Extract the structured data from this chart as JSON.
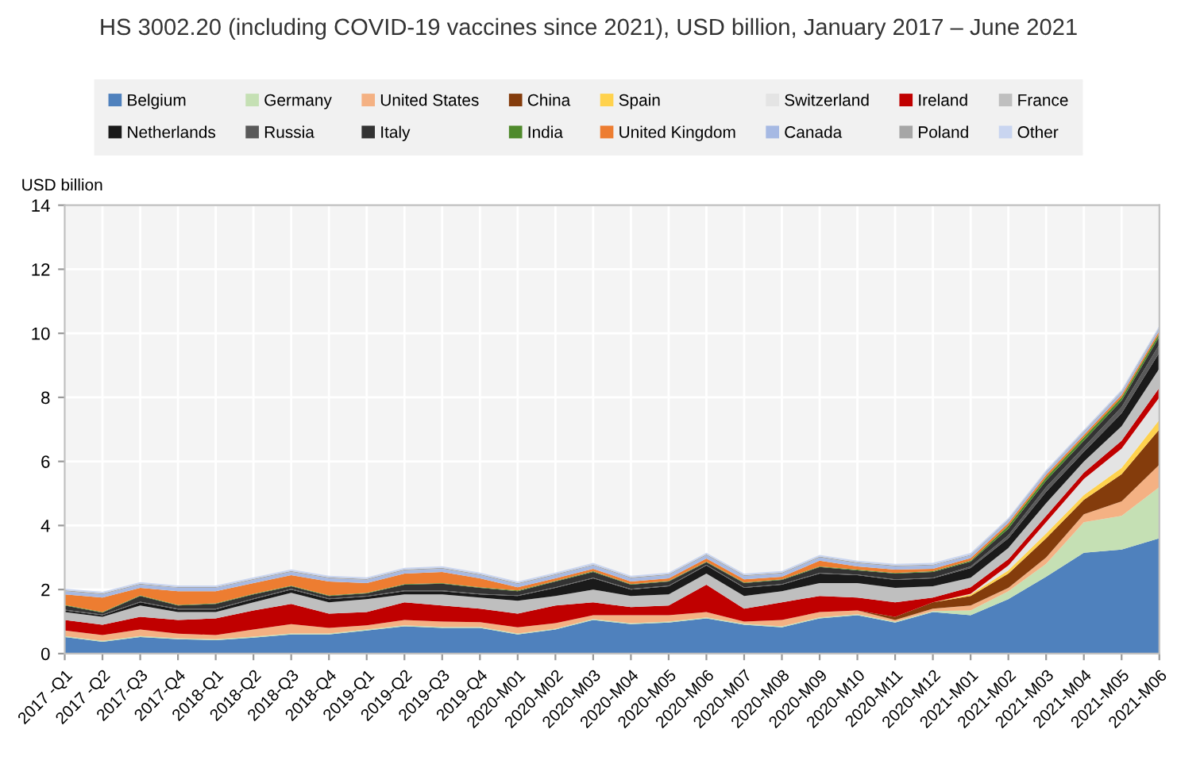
{
  "chart_data": {
    "type": "area",
    "stacked": true,
    "title": "HS 3002.20 (including COVID-19 vaccines since 2021), USD billion, January 2017 – June 2021",
    "ylabel": "USD billion",
    "categories": [
      "2017 -Q1",
      "2017 -Q2",
      "2017-Q3",
      "2017-Q4",
      "2018-Q1",
      "2018-Q2",
      "2018-Q3",
      "2018-Q4",
      "2019-Q1",
      "2019-Q2",
      "2019-Q3",
      "2019-Q4",
      "2020-M01",
      "2020-M02",
      "2020-M03",
      "2020-M04",
      "2020-M05",
      "2020-M06",
      "2020-M07",
      "2020-M08",
      "2020-M09",
      "2020-M10",
      "2020-M11",
      "2020-M12",
      "2021-M01",
      "2021-M02",
      "2021-M03",
      "2021-M04",
      "2021-M05",
      "2021-M06"
    ],
    "ylim": [
      0,
      14
    ],
    "yticks": [
      0,
      2,
      4,
      6,
      8,
      10,
      12,
      14
    ],
    "grid": true,
    "legend": "top",
    "series": [
      {
        "name": "Belgium",
        "color": "#4f81bd",
        "values": [
          0.52,
          0.37,
          0.52,
          0.45,
          0.42,
          0.5,
          0.6,
          0.6,
          0.72,
          0.85,
          0.8,
          0.8,
          0.6,
          0.75,
          1.05,
          0.92,
          0.97,
          1.1,
          0.9,
          0.82,
          1.1,
          1.2,
          0.97,
          1.3,
          1.2,
          1.7,
          2.4,
          3.15,
          3.25,
          3.6
        ]
      },
      {
        "name": "Germany",
        "color": "#c5e0b4",
        "values": [
          0.03,
          0.03,
          0.03,
          0.03,
          0.03,
          0.03,
          0.03,
          0.03,
          0.03,
          0.03,
          0.03,
          0.03,
          0.03,
          0.03,
          0.03,
          0.03,
          0.03,
          0.03,
          0.03,
          0.03,
          0.03,
          0.03,
          0.03,
          0.03,
          0.15,
          0.25,
          0.4,
          0.95,
          1.05,
          1.6
        ]
      },
      {
        "name": "United States",
        "color": "#f4b183",
        "values": [
          0.17,
          0.18,
          0.2,
          0.14,
          0.13,
          0.22,
          0.29,
          0.17,
          0.13,
          0.17,
          0.17,
          0.15,
          0.19,
          0.17,
          0.12,
          0.25,
          0.2,
          0.17,
          0.07,
          0.2,
          0.17,
          0.12,
          0.05,
          0.07,
          0.15,
          0.1,
          0.2,
          0.25,
          0.45,
          0.7
        ]
      },
      {
        "name": "China",
        "color": "#843c0c",
        "values": [
          0,
          0,
          0,
          0,
          0,
          0,
          0,
          0,
          0,
          0,
          0,
          0,
          0,
          0,
          0,
          0,
          0,
          0,
          0,
          0,
          0,
          0,
          0.1,
          0.2,
          0.3,
          0.45,
          0.6,
          0.45,
          0.85,
          1.1
        ]
      },
      {
        "name": "Spain",
        "color": "#ffd24d",
        "values": [
          0,
          0,
          0,
          0,
          0,
          0,
          0,
          0,
          0,
          0,
          0,
          0,
          0,
          0,
          0,
          0,
          0,
          0,
          0,
          0,
          0,
          0,
          0,
          0,
          0.05,
          0.1,
          0.15,
          0.15,
          0.2,
          0.3
        ]
      },
      {
        "name": "Switzerland",
        "color": "#e4e4e4",
        "values": [
          0,
          0,
          0,
          0,
          0,
          0,
          0,
          0,
          0,
          0,
          0,
          0,
          0,
          0,
          0,
          0,
          0,
          0,
          0,
          0,
          0,
          0,
          0,
          0,
          0.02,
          0.15,
          0.35,
          0.5,
          0.6,
          0.7
        ]
      },
      {
        "name": "Ireland",
        "color": "#c00000",
        "values": [
          0.33,
          0.32,
          0.4,
          0.43,
          0.52,
          0.6,
          0.63,
          0.45,
          0.42,
          0.55,
          0.5,
          0.42,
          0.43,
          0.55,
          0.4,
          0.25,
          0.3,
          0.85,
          0.4,
          0.55,
          0.5,
          0.4,
          0.45,
          0.15,
          0.2,
          0.2,
          0.2,
          0.2,
          0.25,
          0.3
        ]
      },
      {
        "name": "France",
        "color": "#bfbfbf",
        "values": [
          0.25,
          0.25,
          0.35,
          0.25,
          0.2,
          0.25,
          0.35,
          0.35,
          0.4,
          0.25,
          0.35,
          0.35,
          0.4,
          0.3,
          0.4,
          0.35,
          0.35,
          0.35,
          0.4,
          0.35,
          0.4,
          0.45,
          0.45,
          0.35,
          0.3,
          0.35,
          0.4,
          0.35,
          0.45,
          0.6
        ]
      },
      {
        "name": "Netherlands",
        "color": "#1a1a1a",
        "values": [
          0.05,
          0.05,
          0.1,
          0.08,
          0.08,
          0.1,
          0.1,
          0.1,
          0.08,
          0.1,
          0.1,
          0.1,
          0.15,
          0.25,
          0.35,
          0.2,
          0.25,
          0.25,
          0.25,
          0.2,
          0.3,
          0.25,
          0.25,
          0.25,
          0.3,
          0.3,
          0.35,
          0.3,
          0.4,
          0.5
        ]
      },
      {
        "name": "Russia",
        "color": "#595959",
        "values": [
          0.02,
          0.02,
          0.02,
          0.02,
          0.02,
          0.02,
          0.02,
          0.02,
          0.02,
          0.02,
          0.02,
          0.02,
          0.02,
          0.02,
          0.02,
          0.02,
          0.02,
          0.02,
          0.02,
          0.02,
          0.02,
          0.02,
          0.02,
          0.02,
          0.05,
          0.1,
          0.15,
          0.15,
          0.2,
          0.25
        ]
      },
      {
        "name": "Italy",
        "color": "#333333",
        "values": [
          0.13,
          0.06,
          0.18,
          0.1,
          0.15,
          0.13,
          0.08,
          0.08,
          0.08,
          0.18,
          0.21,
          0.18,
          0.13,
          0.18,
          0.18,
          0.13,
          0.13,
          0.08,
          0.13,
          0.13,
          0.18,
          0.13,
          0.18,
          0.18,
          0.15,
          0.2,
          0.2,
          0.2,
          0.2,
          0.25
        ]
      },
      {
        "name": "India",
        "color": "#4f8a2c",
        "values": [
          0.02,
          0.02,
          0.02,
          0.02,
          0.02,
          0.02,
          0.02,
          0.02,
          0.02,
          0.02,
          0.02,
          0.02,
          0.02,
          0.02,
          0.02,
          0.02,
          0.02,
          0.02,
          0.02,
          0.02,
          0.02,
          0.02,
          0.02,
          0.02,
          0.03,
          0.1,
          0.1,
          0.1,
          0.1,
          0.1
        ]
      },
      {
        "name": "United Kingdom",
        "color": "#ed7d31",
        "values": [
          0.33,
          0.45,
          0.23,
          0.43,
          0.38,
          0.33,
          0.33,
          0.43,
          0.3,
          0.33,
          0.35,
          0.28,
          0.1,
          0.08,
          0.08,
          0.08,
          0.08,
          0.1,
          0.1,
          0.08,
          0.18,
          0.1,
          0.1,
          0.08,
          0.08,
          0.08,
          0.08,
          0.08,
          0.08,
          0.08
        ]
      },
      {
        "name": "Canada",
        "color": "#a6b9e3",
        "values": [
          0.1,
          0.1,
          0.1,
          0.1,
          0.1,
          0.1,
          0.1,
          0.1,
          0.1,
          0.1,
          0.1,
          0.1,
          0.1,
          0.1,
          0.1,
          0.1,
          0.1,
          0.1,
          0.1,
          0.1,
          0.1,
          0.1,
          0.1,
          0.1,
          0.08,
          0.08,
          0.08,
          0.08,
          0.08,
          0.08
        ]
      },
      {
        "name": "Poland",
        "color": "#a6a6a6",
        "values": [
          0.03,
          0.03,
          0.03,
          0.03,
          0.03,
          0.03,
          0.03,
          0.03,
          0.03,
          0.03,
          0.03,
          0.03,
          0.03,
          0.03,
          0.03,
          0.03,
          0.03,
          0.03,
          0.03,
          0.03,
          0.03,
          0.03,
          0.03,
          0.03,
          0.03,
          0.03,
          0.03,
          0.03,
          0.03,
          0.03
        ]
      },
      {
        "name": "Other",
        "color": "#c9d5f0",
        "values": [
          0.05,
          0.05,
          0.05,
          0.05,
          0.05,
          0.05,
          0.05,
          0.05,
          0.05,
          0.05,
          0.05,
          0.05,
          0.05,
          0.05,
          0.05,
          0.05,
          0.05,
          0.05,
          0.05,
          0.05,
          0.05,
          0.05,
          0.05,
          0.05,
          0.05,
          0.05,
          0.05,
          0.05,
          0.05,
          0.05
        ]
      }
    ]
  }
}
